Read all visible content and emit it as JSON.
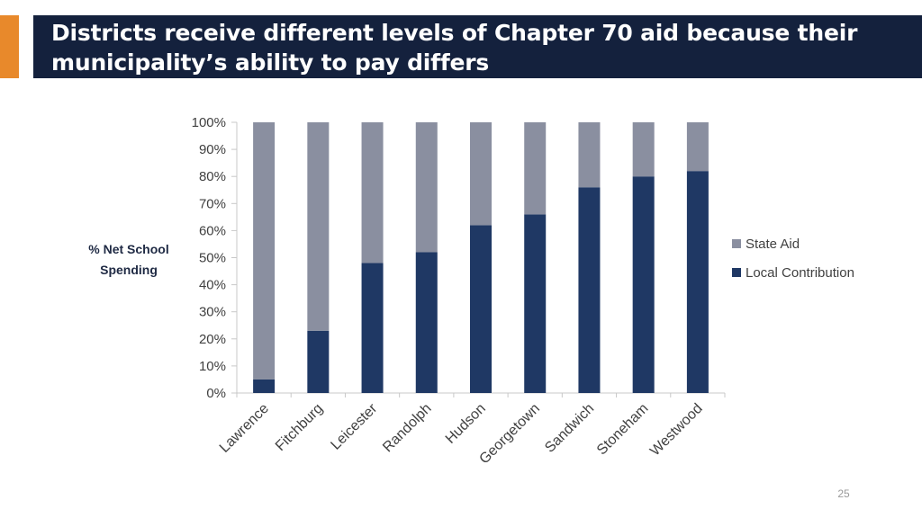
{
  "slide": {
    "title": "Districts receive different levels of Chapter 70 aid because their municipality’s ability to pay differs",
    "page_number": "25",
    "colors": {
      "title_bg": "#14213d",
      "accent": "#e8892b"
    }
  },
  "chart_data": {
    "type": "bar",
    "stacked": true,
    "title": "",
    "xlabel": "",
    "ylabel_lines": [
      "% Net School",
      "Spending"
    ],
    "ylim": [
      0,
      100
    ],
    "y_ticks": [
      "0%",
      "10%",
      "20%",
      "30%",
      "40%",
      "50%",
      "60%",
      "70%",
      "80%",
      "90%",
      "100%"
    ],
    "categories": [
      "Lawrence",
      "Fitchburg",
      "Leicester",
      "Randolph",
      "Hudson",
      "Georgetown",
      "Sandwich",
      "Stoneham",
      "Westwood"
    ],
    "series": [
      {
        "name": "Local Contribution",
        "color": "#1f3864",
        "values": [
          5,
          23,
          48,
          52,
          62,
          66,
          76,
          80,
          82
        ]
      },
      {
        "name": "State Aid",
        "color": "#8a8fa0",
        "values": [
          95,
          77,
          52,
          48,
          38,
          34,
          24,
          20,
          18
        ]
      }
    ],
    "legend": {
      "placement": "right",
      "order": [
        "State Aid",
        "Local Contribution"
      ]
    },
    "grid": false
  }
}
